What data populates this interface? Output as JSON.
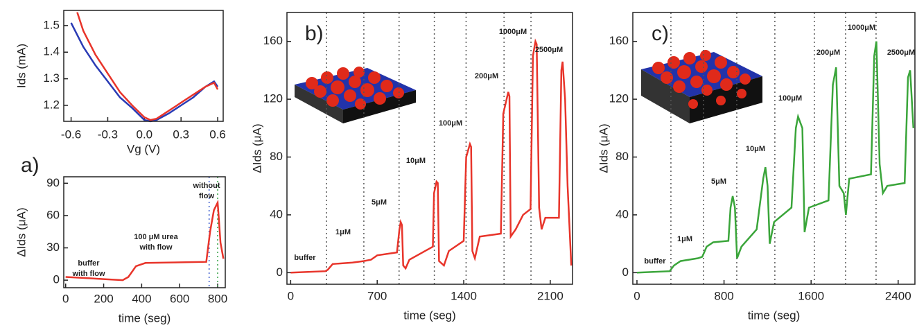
{
  "chart_data": [
    {
      "type": "line",
      "panel_label": "a)",
      "x_label": "Vg (V)",
      "y_label": "Ids (mA)",
      "xlim": [
        -0.66,
        0.645
      ],
      "ylim": [
        1.14,
        1.557
      ],
      "xticks": [
        -0.6,
        -0.3,
        {
          "value": 0,
          "label": "0.0"
        },
        0.3,
        0.6
      ],
      "yticks": [
        1.2,
        1.3,
        1.4,
        1.5
      ],
      "series": [
        {
          "color": "#2a3bb5",
          "x": [
            -0.6,
            -0.5,
            -0.4,
            -0.3,
            -0.2,
            -0.1,
            0,
            0.05,
            0.1,
            0.2,
            0.3,
            0.4,
            0.5,
            0.57,
            0.6
          ],
          "values": [
            1.51,
            1.42,
            1.35,
            1.29,
            1.23,
            1.19,
            1.145,
            1.14,
            1.145,
            1.17,
            1.2,
            1.23,
            1.27,
            1.29,
            1.27
          ]
        },
        {
          "color": "#e8342a",
          "x": [
            -0.55,
            -0.5,
            -0.4,
            -0.3,
            -0.2,
            -0.1,
            0,
            0.05,
            0.1,
            0.2,
            0.3,
            0.4,
            0.5,
            0.57,
            0.6
          ],
          "values": [
            1.55,
            1.48,
            1.39,
            1.32,
            1.25,
            1.2,
            1.155,
            1.145,
            1.15,
            1.18,
            1.21,
            1.24,
            1.27,
            1.285,
            1.26
          ]
        }
      ]
    },
    {
      "type": "line",
      "x_label": "time (seg)",
      "y_label": "ΔIds (μA)",
      "xlim": [
        -10,
        840
      ],
      "ylim": [
        -7,
        96
      ],
      "xticks": [
        0,
        200,
        400,
        600,
        800
      ],
      "yticks": [
        0,
        30,
        60,
        90
      ],
      "vlines": [
        {
          "x": 755,
          "color": "#3355cc"
        },
        {
          "x": 800,
          "color": "#2e9e3e"
        }
      ],
      "annotations": [
        "buffer",
        "with flow",
        "100 μM urea",
        "with flow",
        "without",
        "flow"
      ],
      "series": [
        {
          "color": "#e8342a",
          "x": [
            0,
            100,
            200,
            300,
            330,
            370,
            420,
            740,
            760,
            780,
            800,
            805,
            815,
            830
          ],
          "values": [
            3,
            2,
            1,
            0,
            3,
            13,
            16,
            17,
            45,
            65,
            72,
            60,
            35,
            20
          ]
        }
      ]
    },
    {
      "type": "line",
      "panel_label": "b)",
      "x_label": "time (seg)",
      "y_label": "ΔIds (μA)",
      "xlim": [
        -30,
        2280
      ],
      "ylim": [
        -8,
        180
      ],
      "xticks": [
        0,
        700,
        1400,
        2100
      ],
      "yticks": [
        0,
        40,
        80,
        120,
        160
      ],
      "vlines": [
        {
          "x": 290,
          "color": "#555555"
        },
        {
          "x": 592,
          "color": "#555555"
        },
        {
          "x": 877,
          "color": "#555555"
        },
        {
          "x": 1162,
          "color": "#555555"
        },
        {
          "x": 1419,
          "color": "#555555"
        },
        {
          "x": 1726,
          "color": "#555555"
        },
        {
          "x": 1944,
          "color": "#555555"
        }
      ],
      "annotations": [
        "buffer",
        "1μM",
        "5μM",
        "10μM",
        "100μM",
        "200μM",
        "1000μM",
        "2500μM"
      ],
      "series": [
        {
          "color": "#e8342a",
          "x": [
            0,
            280,
            300,
            340,
            500,
            590,
            650,
            700,
            860,
            880,
            890,
            900,
            910,
            930,
            960,
            1150,
            1160,
            1180,
            1190,
            1200,
            1240,
            1280,
            1400,
            1420,
            1450,
            1460,
            1470,
            1490,
            1530,
            1700,
            1720,
            1760,
            1770,
            1780,
            1820,
            1880,
            1940,
            1960,
            1980,
            1990,
            2010,
            2030,
            2060,
            2170,
            2190,
            2200,
            2220,
            2240,
            2270
          ],
          "values": [
            0,
            1,
            2,
            6,
            7,
            8,
            9,
            12,
            14,
            30,
            35,
            33,
            5,
            3,
            9,
            18,
            55,
            63,
            62,
            8,
            5,
            15,
            22,
            80,
            89,
            87,
            15,
            10,
            25,
            27,
            110,
            125,
            122,
            25,
            30,
            40,
            44,
            150,
            160,
            158,
            45,
            30,
            38,
            38,
            140,
            146,
            120,
            60,
            5
          ]
        }
      ]
    },
    {
      "type": "line",
      "panel_label": "c)",
      "x_label": "time (seg)",
      "y_label": "ΔIds (μA)",
      "xlim": [
        -38,
        2554
      ],
      "ylim": [
        -8,
        180
      ],
      "xticks": [
        0,
        800,
        1600,
        2400
      ],
      "yticks": [
        0,
        40,
        80,
        120,
        160
      ],
      "vlines": [
        {
          "x": 312,
          "color": "#555555"
        },
        {
          "x": 612,
          "color": "#555555"
        },
        {
          "x": 917,
          "color": "#555555"
        },
        {
          "x": 1267,
          "color": "#555555"
        },
        {
          "x": 1630,
          "color": "#555555"
        },
        {
          "x": 1917,
          "color": "#555555"
        },
        {
          "x": 2197,
          "color": "#555555"
        }
      ],
      "annotations": [
        "buffer",
        "1μM",
        "5μM",
        "10μM",
        "100μM",
        "200μM",
        "1000μM",
        "2500μM"
      ],
      "series": [
        {
          "color": "#3aa53a",
          "x": [
            0,
            300,
            340,
            400,
            560,
            600,
            640,
            700,
            840,
            860,
            880,
            900,
            920,
            960,
            1100,
            1160,
            1180,
            1200,
            1220,
            1260,
            1420,
            1460,
            1480,
            1520,
            1540,
            1580,
            1760,
            1800,
            1830,
            1860,
            1900,
            1920,
            1950,
            2150,
            2180,
            2200,
            2230,
            2260,
            2300,
            2460,
            2490,
            2510,
            2540
          ],
          "values": [
            0,
            1,
            5,
            8,
            10,
            11,
            18,
            21,
            22,
            45,
            53,
            45,
            10,
            18,
            30,
            65,
            73,
            60,
            20,
            35,
            45,
            100,
            108,
            100,
            28,
            45,
            50,
            130,
            142,
            60,
            55,
            40,
            65,
            68,
            150,
            160,
            75,
            55,
            60,
            62,
            135,
            140,
            100
          ]
        }
      ]
    }
  ]
}
